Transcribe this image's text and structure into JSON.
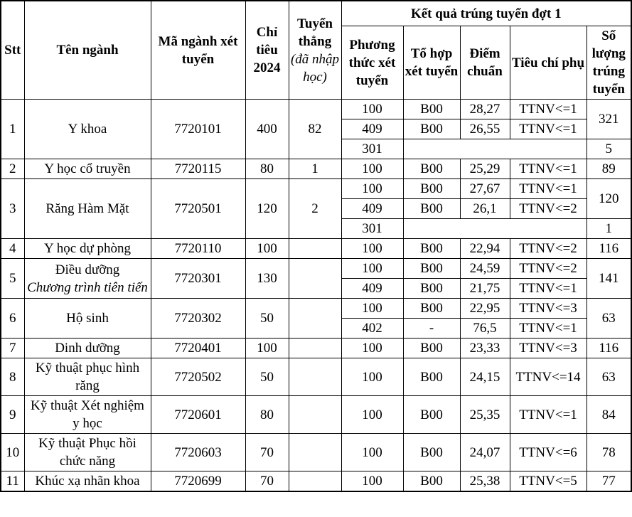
{
  "table": {
    "header": {
      "stt": "Stt",
      "ten_nganh": "Tên ngành",
      "ma_nganh": "Mã ngành xét tuyển",
      "chi_tieu": "Chỉ tiêu 2024",
      "tuyen_thang": "Tuyển thẳng",
      "tuyen_thang_note": "(đã nhập học)",
      "ket_qua": "Kết quả trúng tuyển đợt 1",
      "phuong_thuc": "Phương thức xét tuyển",
      "to_hop": "Tổ hợp xét tuyển",
      "diem_chuan": "Điểm chuẩn",
      "tieu_chi": "Tiêu chí phụ",
      "so_luong": "Số lượng trúng tuyển"
    },
    "rows": [
      {
        "stt": "1",
        "name": "Y khoa",
        "code": "7720101",
        "quota": "400",
        "direct": "82",
        "subrows": [
          {
            "method": "100",
            "combo": "B00",
            "score": "28,27",
            "criteria": "TTNV<=1",
            "count": "321",
            "countRowspan": 2
          },
          {
            "method": "409",
            "combo": "B00",
            "score": "26,55",
            "criteria": "TTNV<=1"
          },
          {
            "method": "301",
            "merged": true,
            "count": "5"
          }
        ]
      },
      {
        "stt": "2",
        "name": "Y học cổ truyền",
        "code": "7720115",
        "quota": "80",
        "direct": "1",
        "subrows": [
          {
            "method": "100",
            "combo": "B00",
            "score": "25,29",
            "criteria": "TTNV<=1",
            "count": "89"
          }
        ]
      },
      {
        "stt": "3",
        "name": "Răng Hàm Mặt",
        "code": "7720501",
        "quota": "120",
        "direct": "2",
        "subrows": [
          {
            "method": "100",
            "combo": "B00",
            "score": "27,67",
            "criteria": "TTNV<=1",
            "count": "120",
            "countRowspan": 2
          },
          {
            "method": "409",
            "combo": "B00",
            "score": "26,1",
            "criteria": "TTNV<=2"
          },
          {
            "method": "301",
            "merged": true,
            "count": "1"
          }
        ]
      },
      {
        "stt": "4",
        "name": "Y học dự phòng",
        "code": "7720110",
        "quota": "100",
        "direct": "",
        "subrows": [
          {
            "method": "100",
            "combo": "B00",
            "score": "22,94",
            "criteria": "TTNV<=2",
            "count": "116"
          }
        ]
      },
      {
        "stt": "5",
        "name": "Điều dưỡng",
        "name_note": "Chương trình tiên tiến",
        "code": "7720301",
        "quota": "130",
        "direct": "",
        "subrows": [
          {
            "method": "100",
            "combo": "B00",
            "score": "24,59",
            "criteria": "TTNV<=2",
            "count": "141",
            "countRowspan": 2
          },
          {
            "method": "409",
            "combo": "B00",
            "score": "21,75",
            "criteria": "TTNV<=1"
          }
        ]
      },
      {
        "stt": "6",
        "name": "Hộ sinh",
        "code": "7720302",
        "quota": "50",
        "direct": "",
        "subrows": [
          {
            "method": "100",
            "combo": "B00",
            "score": "22,95",
            "criteria": "TTNV<=3",
            "count": "63",
            "countRowspan": 2
          },
          {
            "method": "402",
            "combo": "-",
            "score": "76,5",
            "criteria": "TTNV<=1"
          }
        ]
      },
      {
        "stt": "7",
        "name": "Dinh dưỡng",
        "code": "7720401",
        "quota": "100",
        "direct": "",
        "subrows": [
          {
            "method": "100",
            "combo": "B00",
            "score": "23,33",
            "criteria": "TTNV<=3",
            "count": "116"
          }
        ]
      },
      {
        "stt": "8",
        "name": "Kỹ thuật phục hình răng",
        "code": "7720502",
        "quota": "50",
        "direct": "",
        "subrows": [
          {
            "method": "100",
            "combo": "B00",
            "score": "24,15",
            "criteria": "TTNV<=14",
            "count": "63"
          }
        ]
      },
      {
        "stt": "9",
        "name": "Kỹ thuật Xét nghiệm y học",
        "code": "7720601",
        "quota": "80",
        "direct": "",
        "subrows": [
          {
            "method": "100",
            "combo": "B00",
            "score": "25,35",
            "criteria": "TTNV<=1",
            "count": "84"
          }
        ]
      },
      {
        "stt": "10",
        "name": "Kỹ thuật Phục hồi chức năng",
        "code": "7720603",
        "quota": "70",
        "direct": "",
        "subrows": [
          {
            "method": "100",
            "combo": "B00",
            "score": "24,07",
            "criteria": "TTNV<=6",
            "count": "78"
          }
        ]
      },
      {
        "stt": "11",
        "name": "Khúc xạ nhãn khoa",
        "code": "7720699",
        "quota": "70",
        "direct": "",
        "subrows": [
          {
            "method": "100",
            "combo": "B00",
            "score": "25,38",
            "criteria": "TTNV<=5",
            "count": "77"
          }
        ]
      }
    ]
  }
}
